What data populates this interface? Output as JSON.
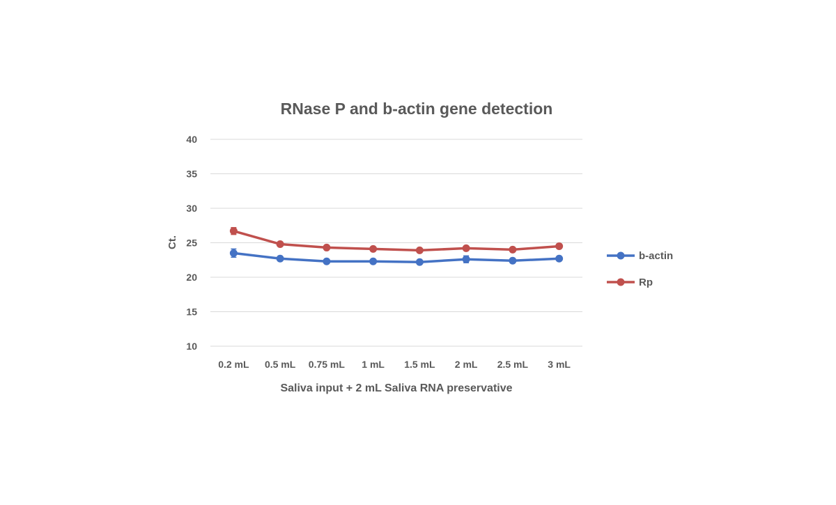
{
  "chart_data": {
    "type": "line",
    "title": "RNase P and b-actin gene detection",
    "xlabel": "Saliva input + 2 mL Saliva RNA preservative",
    "ylabel": "Ct.",
    "ylim": [
      10,
      40
    ],
    "yticks": [
      "10",
      "15",
      "20",
      "25",
      "30",
      "35",
      "40"
    ],
    "grid": true,
    "legend_position": "right",
    "categories": [
      "0.2 mL",
      "0.5 mL",
      "0.75 mL",
      "1 mL",
      "1.5 mL",
      "2 mL",
      "2.5 mL",
      "3 mL"
    ],
    "series": [
      {
        "name": "b-actin",
        "color": "#4472C4",
        "values": [
          23.5,
          22.7,
          22.3,
          22.3,
          22.2,
          22.6,
          22.4,
          22.7
        ],
        "errors": [
          0.6,
          0.2,
          0.2,
          0.2,
          0.2,
          0.5,
          0.2,
          0.2
        ]
      },
      {
        "name": "Rp",
        "color": "#C0504D",
        "values": [
          26.7,
          24.8,
          24.3,
          24.1,
          23.9,
          24.2,
          24.0,
          24.5
        ],
        "errors": [
          0.5,
          0.2,
          0.2,
          0.2,
          0.2,
          0.2,
          0.2,
          0.3
        ]
      }
    ]
  }
}
